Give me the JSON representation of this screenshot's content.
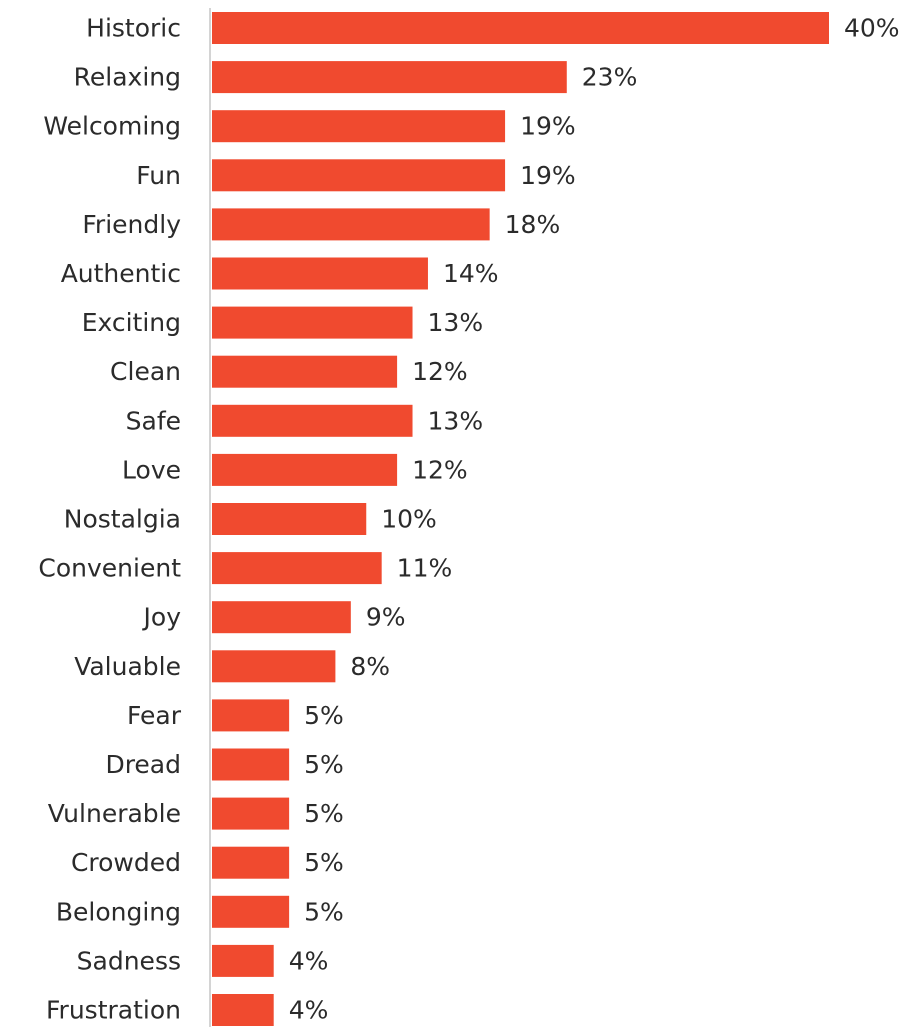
{
  "colors": {
    "bar": "#f04a2f",
    "axis": "#d4d4d4",
    "text": "#2b2b2b"
  },
  "chart_data": {
    "type": "bar",
    "orientation": "horizontal",
    "categories": [
      "Historic",
      "Relaxing",
      "Welcoming",
      "Fun",
      "Friendly",
      "Authentic",
      "Exciting",
      "Clean",
      "Safe",
      "Love",
      "Nostalgia",
      "Convenient",
      "Joy",
      "Valuable",
      "Fear",
      "Dread",
      "Vulnerable",
      "Crowded",
      "Belonging",
      "Sadness",
      "Frustration"
    ],
    "values": [
      40,
      23,
      19,
      19,
      18,
      14,
      13,
      12,
      13,
      12,
      10,
      11,
      9,
      8,
      5,
      5,
      5,
      5,
      5,
      4,
      4
    ],
    "value_labels": [
      "40%",
      "23%",
      "19%",
      "19%",
      "18%",
      "14%",
      "13%",
      "12%",
      "13%",
      "12%",
      "10%",
      "11%",
      "9%",
      "8%",
      "5%",
      "5%",
      "5%",
      "5%",
      "5%",
      "4%",
      "4%"
    ],
    "xlim": [
      0,
      40
    ],
    "grid": false,
    "legend": "none"
  }
}
